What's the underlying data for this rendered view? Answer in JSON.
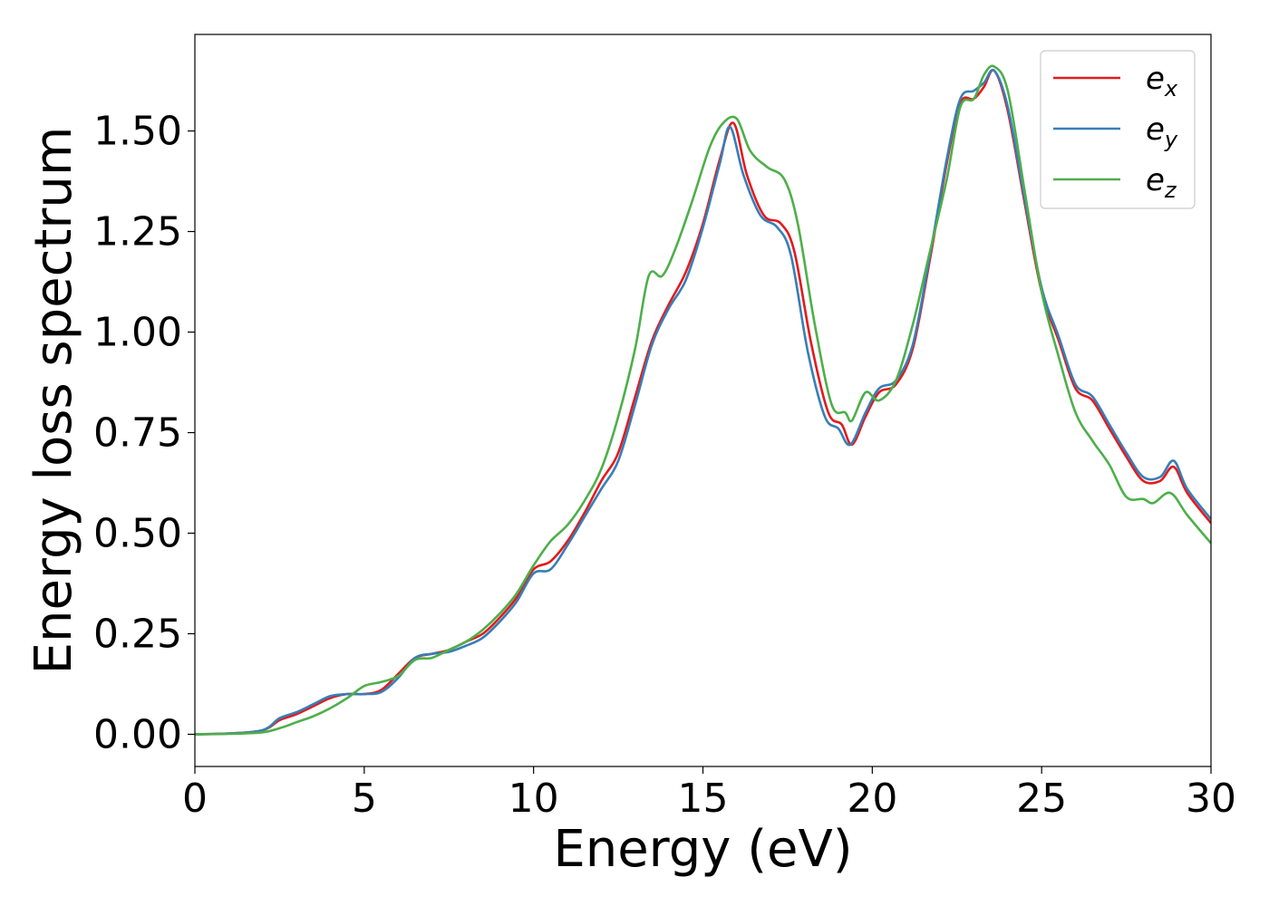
{
  "chart_data": {
    "type": "line",
    "title": "",
    "xlabel": "Energy (eV)",
    "ylabel": "Energy loss spectrum",
    "xlim": [
      0,
      30
    ],
    "ylim": [
      -0.08,
      1.74
    ],
    "xticks": [
      "0",
      "5",
      "10",
      "15",
      "20",
      "25",
      "30"
    ],
    "xtick_values": [
      0,
      5,
      10,
      15,
      20,
      25,
      30
    ],
    "yticks": [
      "0.00",
      "0.25",
      "0.50",
      "0.75",
      "1.00",
      "1.25",
      "1.50"
    ],
    "ytick_values": [
      0,
      0.25,
      0.5,
      0.75,
      1.0,
      1.25,
      1.5
    ],
    "grid": false,
    "legend_position": "top-right",
    "series": [
      {
        "name": "e",
        "subscript": "x",
        "color": "#e41a1c",
        "x": [
          0,
          1,
          2,
          2.5,
          3,
          3.5,
          4,
          4.5,
          5,
          5.5,
          6,
          6.5,
          7,
          7.5,
          8,
          8.5,
          9,
          9.5,
          10,
          10.5,
          11,
          11.5,
          12,
          12.5,
          13,
          13.5,
          14,
          14.5,
          15,
          15.5,
          15.9,
          16.3,
          16.8,
          17.3,
          17.7,
          18.2,
          18.7,
          19.1,
          19.4,
          19.8,
          20.2,
          20.7,
          21.2,
          21.7,
          22.2,
          22.6,
          23.0,
          23.3,
          23.6,
          24.0,
          24.5,
          25.0,
          25.5,
          26.0,
          26.5,
          27.0,
          27.5,
          28.0,
          28.5,
          28.9,
          29.3,
          30
        ],
        "y": [
          0.0,
          0.002,
          0.01,
          0.035,
          0.05,
          0.07,
          0.09,
          0.1,
          0.1,
          0.11,
          0.15,
          0.19,
          0.2,
          0.21,
          0.23,
          0.25,
          0.29,
          0.34,
          0.41,
          0.43,
          0.48,
          0.55,
          0.63,
          0.7,
          0.84,
          0.98,
          1.07,
          1.15,
          1.27,
          1.43,
          1.52,
          1.39,
          1.29,
          1.27,
          1.2,
          0.97,
          0.8,
          0.77,
          0.72,
          0.79,
          0.85,
          0.87,
          0.96,
          1.18,
          1.42,
          1.57,
          1.58,
          1.61,
          1.65,
          1.55,
          1.32,
          1.1,
          0.98,
          0.86,
          0.83,
          0.76,
          0.69,
          0.63,
          0.63,
          0.665,
          0.6,
          0.525
        ]
      },
      {
        "name": "e",
        "subscript": "y",
        "color": "#377eb8",
        "x": [
          0,
          1,
          2,
          2.5,
          3,
          3.5,
          4,
          4.5,
          5,
          5.5,
          6,
          6.5,
          7,
          7.5,
          8,
          8.5,
          9,
          9.5,
          10,
          10.5,
          11,
          11.5,
          12,
          12.5,
          13,
          13.5,
          14,
          14.5,
          15,
          15.5,
          15.8,
          16.2,
          16.7,
          17.2,
          17.6,
          18.1,
          18.6,
          19.0,
          19.35,
          19.8,
          20.2,
          20.7,
          21.2,
          21.7,
          22.2,
          22.6,
          23.0,
          23.3,
          23.6,
          24.0,
          24.5,
          25.0,
          25.5,
          26.0,
          26.5,
          27.0,
          27.5,
          28.0,
          28.5,
          28.9,
          29.3,
          30
        ],
        "y": [
          0.0,
          0.002,
          0.01,
          0.04,
          0.055,
          0.075,
          0.095,
          0.1,
          0.1,
          0.105,
          0.14,
          0.19,
          0.2,
          0.205,
          0.22,
          0.24,
          0.28,
          0.33,
          0.4,
          0.41,
          0.47,
          0.54,
          0.61,
          0.68,
          0.82,
          0.97,
          1.06,
          1.13,
          1.26,
          1.42,
          1.51,
          1.39,
          1.29,
          1.26,
          1.19,
          0.95,
          0.79,
          0.76,
          0.72,
          0.8,
          0.86,
          0.88,
          0.97,
          1.19,
          1.43,
          1.58,
          1.6,
          1.62,
          1.65,
          1.56,
          1.33,
          1.11,
          0.99,
          0.87,
          0.84,
          0.77,
          0.7,
          0.64,
          0.64,
          0.68,
          0.61,
          0.535
        ]
      },
      {
        "name": "e",
        "subscript": "z",
        "color": "#4daf4a",
        "x": [
          0,
          1,
          2,
          2.5,
          3,
          3.5,
          4,
          4.5,
          5,
          5.5,
          6,
          6.5,
          7,
          7.5,
          8,
          8.5,
          9,
          9.5,
          10,
          10.5,
          11,
          11.5,
          12,
          12.5,
          13,
          13.4,
          13.8,
          14.2,
          14.7,
          15.2,
          15.6,
          16.0,
          16.4,
          16.9,
          17.4,
          17.8,
          18.3,
          18.8,
          19.2,
          19.4,
          19.8,
          20.2,
          20.7,
          21.2,
          21.7,
          22.2,
          22.6,
          23.0,
          23.3,
          23.6,
          24.0,
          24.5,
          25.0,
          25.5,
          26.0,
          26.5,
          27.0,
          27.5,
          28.0,
          28.3,
          28.8,
          29.3,
          30
        ],
        "y": [
          0.0,
          0.001,
          0.005,
          0.015,
          0.03,
          0.045,
          0.065,
          0.09,
          0.12,
          0.13,
          0.145,
          0.185,
          0.19,
          0.21,
          0.23,
          0.26,
          0.3,
          0.35,
          0.42,
          0.48,
          0.52,
          0.58,
          0.66,
          0.79,
          0.96,
          1.14,
          1.14,
          1.21,
          1.33,
          1.46,
          1.52,
          1.53,
          1.45,
          1.41,
          1.38,
          1.27,
          1.02,
          0.82,
          0.8,
          0.78,
          0.85,
          0.83,
          0.88,
          1.02,
          1.2,
          1.38,
          1.56,
          1.58,
          1.64,
          1.66,
          1.6,
          1.35,
          1.1,
          0.94,
          0.8,
          0.73,
          0.67,
          0.59,
          0.585,
          0.575,
          0.6,
          0.545,
          0.475
        ]
      }
    ]
  }
}
